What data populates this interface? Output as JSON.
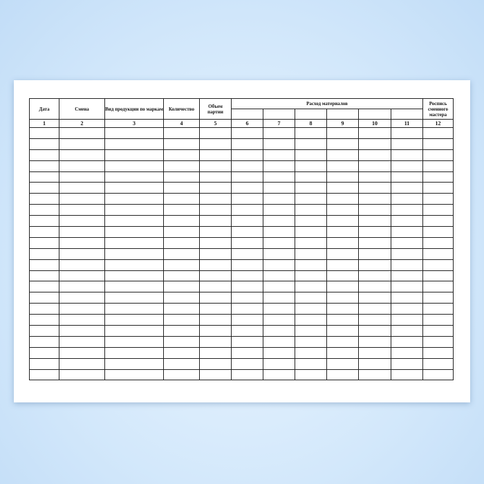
{
  "headers": {
    "date": "Дата",
    "shift": "Смена",
    "product": "Вид продукции по маркам",
    "quantity": "Количество",
    "volume": "Объем партии",
    "materials": "Расход материалов",
    "signature": "Роспись сменного мастера"
  },
  "column_numbers": [
    "1",
    "2",
    "3",
    "4",
    "5",
    "6",
    "7",
    "8",
    "9",
    "10",
    "11",
    "12"
  ],
  "empty_rows": 23
}
